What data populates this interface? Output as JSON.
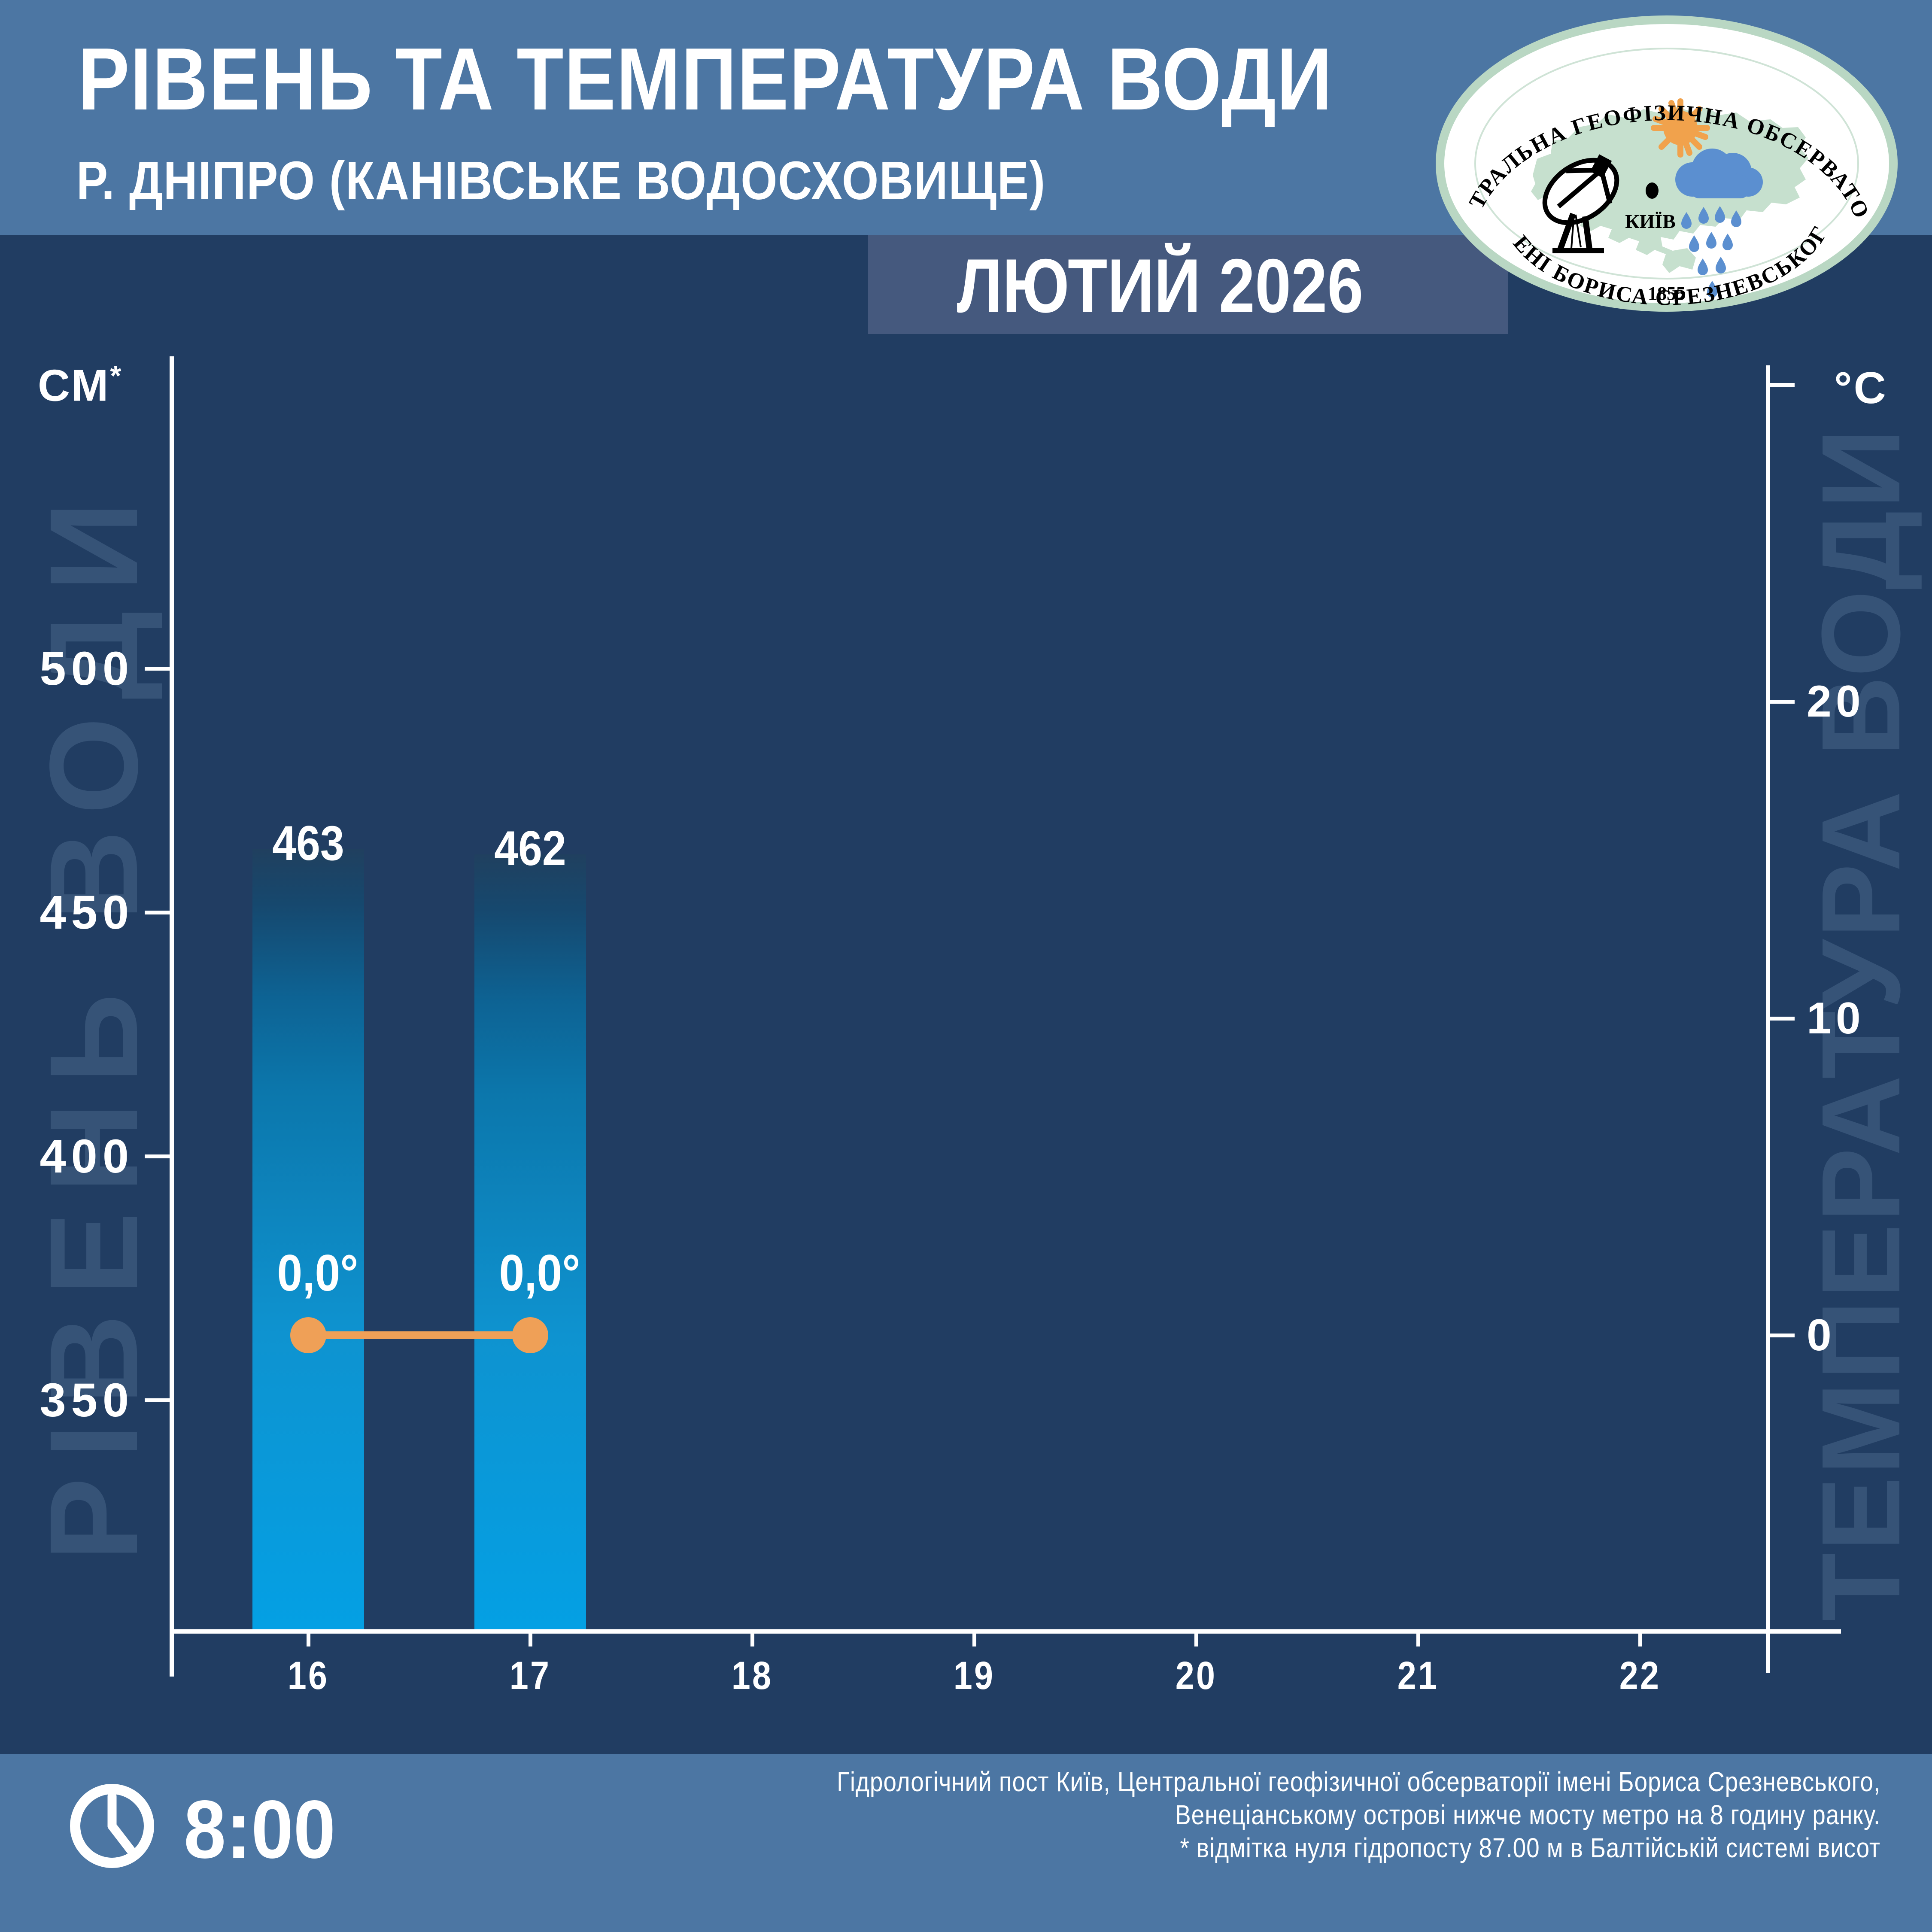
{
  "header": {
    "title": "РІВЕНЬ ТА ТЕМПЕРАТУРА ВОДИ",
    "subtitle": "Р. ДНІПРО (КАНІВСЬКЕ ВОДОСХОВИЩЕ)",
    "period": "ЛЮТИЙ 2026"
  },
  "logo": {
    "arc_top": "ЦЕНТРАЛЬНА ГЕОФІЗИЧНА ОБСЕРВАТОРІЯ",
    "arc_bottom": "ІМЕНІ БОРИСА СРЕЗНЕВСЬКОГО",
    "year_founded": "1855",
    "city_label": "КИЇВ"
  },
  "watermarks": {
    "left": "РІВЕНЬ ВОДИ",
    "right": "ТЕМПЕРАТУРА ВОДИ"
  },
  "chart_data": {
    "type": "bar",
    "title": "Рівень та температура води, р. Дніпро (Канівське водосховище), лютий 2026",
    "categories": [
      16,
      17,
      18,
      19,
      20,
      21,
      22
    ],
    "series": [
      {
        "name": "Рівень води, см",
        "type": "bar",
        "axis": "left",
        "values": [
          463,
          462,
          null,
          null,
          null,
          null,
          null
        ],
        "labels": [
          "463",
          "462"
        ]
      },
      {
        "name": "Температура води, °C",
        "type": "line",
        "axis": "right",
        "values": [
          0.0,
          0.0,
          null,
          null,
          null,
          null,
          null
        ],
        "labels": [
          "0,0°",
          "0,0°"
        ]
      }
    ],
    "left_axis": {
      "unit": "СМ",
      "note_marker": "*",
      "ticks": [
        "500",
        "450",
        "400",
        "350"
      ]
    },
    "right_axis": {
      "unit": "°C",
      "ticks": [
        "20",
        "10",
        "0"
      ]
    },
    "grid": false,
    "legend": false
  },
  "footer": {
    "time": "8:00",
    "lines": [
      "Гідрологічний пост Київ, Центральної геофізичної обсерваторії імені Бориса Срезневського,",
      "Венеціанському острові нижче мосту метро на 8 годину ранку.",
      "* відмітка нуля гідропосту 87.00 м в Балтійській системі висот"
    ]
  },
  "colors": {
    "header_band": "#4C76A3",
    "background": "#213D62",
    "period_band": "#45597E",
    "bar_bottom": "#04A0E4",
    "bar_top": "#20405F",
    "temperature_line": "#EFA057",
    "watermark": "#365377",
    "logo_ring_green": "#B9D7C3",
    "logo_map_green": "#C6E0CE",
    "logo_cloud_blue": "#5B8FD0",
    "logo_sun_orange": "#F1A24C"
  }
}
